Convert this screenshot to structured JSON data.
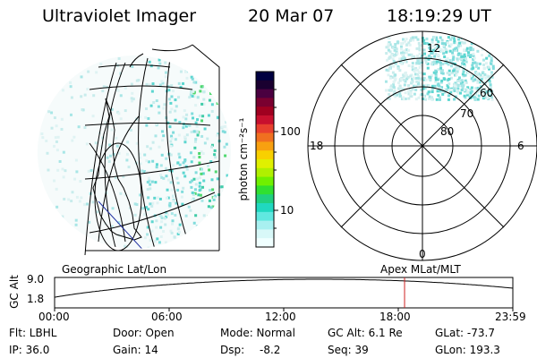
{
  "header": {
    "instrument": "Ultraviolet Imager",
    "date": "20 Mar 07",
    "time": "18:19:29 UT"
  },
  "geo_map": {
    "label": "Geographic Lat/Lon"
  },
  "colorbar": {
    "unit_label": "photon cm⁻²s⁻¹",
    "tick_labels": [
      "100",
      "10"
    ],
    "colors": [
      "#000040",
      "#1a0030",
      "#4a0040",
      "#7a0030",
      "#a00020",
      "#c8102e",
      "#e8402e",
      "#f07020",
      "#f8a010",
      "#f8d000",
      "#e0f000",
      "#b0f000",
      "#70f000",
      "#30e030",
      "#20d080",
      "#20d8c0",
      "#60e8e0",
      "#a8f0f0",
      "#d8f8f8",
      "#f0ffff"
    ]
  },
  "polar_map": {
    "label": "Apex MLat/MLT",
    "lat_labels": [
      "60",
      "70",
      "80"
    ],
    "mlt_labels": [
      "12",
      "18",
      "6",
      "0"
    ]
  },
  "altitude_plot": {
    "ylabel": "GC Alt",
    "yticks": [
      "9.0",
      "1.8"
    ],
    "xticks": [
      "00:00",
      "06:00",
      "12:00",
      "18:00",
      "23:59"
    ],
    "marker_time": "18:19"
  },
  "info": {
    "filter": "Flt: LBHL",
    "ip": "IP: 36.0",
    "door": "Door: Open",
    "gain": "Gain: 14",
    "mode": "Mode: Normal",
    "dsp_label": "Dsp:",
    "dsp_value": "-8.2",
    "gc_alt": "GC Alt: 6.1 Re",
    "seq": "Seq: 39",
    "glat": "GLat: -73.7",
    "glon": "GLon: 193.3"
  }
}
